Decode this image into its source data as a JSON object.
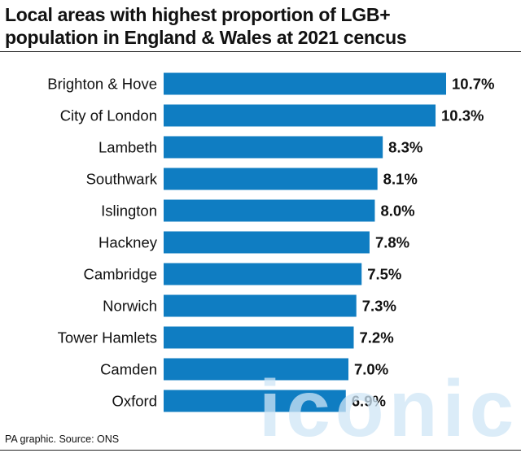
{
  "title_line1": "Local areas with highest proportion of LGB+",
  "title_line2": "population in England & Wales at 2021 cencus",
  "source": "PA graphic. Source: ONS",
  "watermark": "iconic",
  "bar_color": "#0f7dc2",
  "chart_data": {
    "type": "bar",
    "orientation": "horizontal",
    "title": "Local areas with highest proportion of LGB+ population in England & Wales at 2021 cencus",
    "categories": [
      "Brighton & Hove",
      "City of London",
      "Lambeth",
      "Southwark",
      "Islington",
      "Hackney",
      "Cambridge",
      "Norwich",
      "Tower Hamlets",
      "Camden",
      "Oxford"
    ],
    "values": [
      10.7,
      10.3,
      8.3,
      8.1,
      8.0,
      7.8,
      7.5,
      7.3,
      7.2,
      7.0,
      6.9
    ],
    "data_labels": [
      "10.7%",
      "10.3%",
      "8.3%",
      "8.1%",
      "8.0%",
      "7.8%",
      "7.5%",
      "7.3%",
      "7.2%",
      "7.0%",
      "6.9%"
    ],
    "xlim": [
      0,
      10.7
    ],
    "grid": false,
    "legend": "none"
  }
}
